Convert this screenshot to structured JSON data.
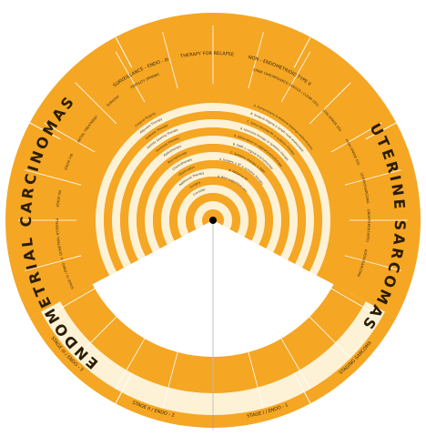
{
  "colors": {
    "orange": "#f5a623",
    "orange_dark": "#e8951a",
    "cream": "#fdf2d6",
    "cream_dark": "#f7e2b0",
    "ink": "#2b1d05",
    "line": "#ffffff"
  },
  "titles": {
    "left": "ENDOMETRIAL CARCINOMAS",
    "right": "UTERINE SARCOMAS"
  },
  "top_headers": [
    "SURVEILLANCE - ENDO - III",
    "THERAPY FOR RELAPSE",
    "NON - ENDOMETRIOID TYPE II"
  ],
  "bottom_labels": [
    "STAGE III / ENDO - 3",
    "STAGE II / ENDO - 2",
    "STAGE I / ENDO - 1",
    "STAGING SARCOMA"
  ],
  "outer_cells_left": [
    "STAGE IV / ENDO - 4",
    "ENDOMETRIAL HYPERPLASIA",
    "STAGE IVA",
    "STAGE IVB",
    "INITIAL TREATMENT",
    "SURGERY",
    "FERTILITY SPARING"
  ],
  "outer_cells_right": [
    "UTERINE CARCINOSARCOMA",
    "SEROUS / CLEAR CELL",
    "LOW-GRADE ESS",
    "HIGH-GRADE ESS",
    "LEIOMYOSARCOMA",
    "UNDIFFERENTIATED",
    "ADENOSARCOMA"
  ],
  "ring_labels": [
    "Surgical Staging",
    "Adjuvant Therapy",
    "Systemic Therapy",
    "Fertility Sparing Therapy",
    "Hormone Therapy",
    "Radiotherapy",
    "Brachytherapy",
    "Chemotherapy",
    "Observation",
    "Additional Therapy",
    "Surgery",
    "Consider"
  ],
  "ring_right_notes": [
    "A. Hysterectomy & Bilateral Salpingo-oophorectomy",
    "B. Surgical staging ± lymph node assessment",
    "C. Tumor-directed RT ± systemic therapy",
    "A. Hormone therapy or systemic therapy",
    "A. Observation or vaginal brachytherapy",
    "B. EBRT ± vaginal brachytherapy",
    "C. Systemic therapy ± EBRT",
    "A. Surgery ± RT ± systemic therapy",
    "B. Palliative RT",
    "A. Best supportive care"
  ]
}
